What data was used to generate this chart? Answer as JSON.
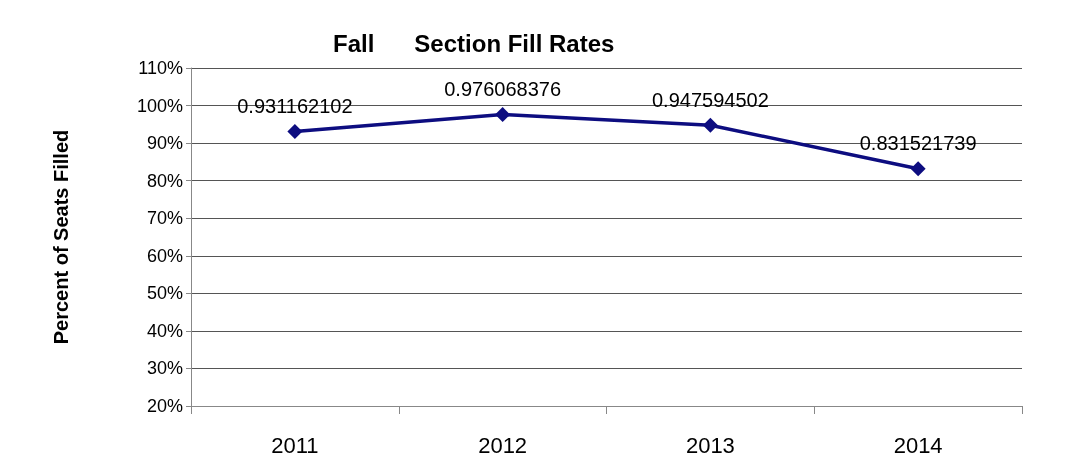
{
  "chart_data": {
    "type": "line",
    "title": "Fall      Section Fill Rates",
    "ylabel": "Percent of Seats Filled",
    "categories": [
      "2011",
      "2012",
      "2013",
      "2014"
    ],
    "series": [
      {
        "color": "#0d0d80",
        "values": [
          0.931162102,
          0.976068376,
          0.947594502,
          0.831521739
        ]
      }
    ],
    "ylim": [
      0.2,
      1.1
    ],
    "yticks": [
      {
        "value": 0.2,
        "label": "20%"
      },
      {
        "value": 0.3,
        "label": "30%"
      },
      {
        "value": 0.4,
        "label": "40%"
      },
      {
        "value": 0.5,
        "label": "50%"
      },
      {
        "value": 0.6,
        "label": "60%"
      },
      {
        "value": 0.7,
        "label": "70%"
      },
      {
        "value": 0.8,
        "label": "80%"
      },
      {
        "value": 0.9,
        "label": "90%"
      },
      {
        "value": 1.0,
        "label": "100%"
      },
      {
        "value": 1.1,
        "label": "110%"
      }
    ],
    "grid": "y",
    "marker": "diamond",
    "line_style": "solid",
    "data_labels": true
  }
}
